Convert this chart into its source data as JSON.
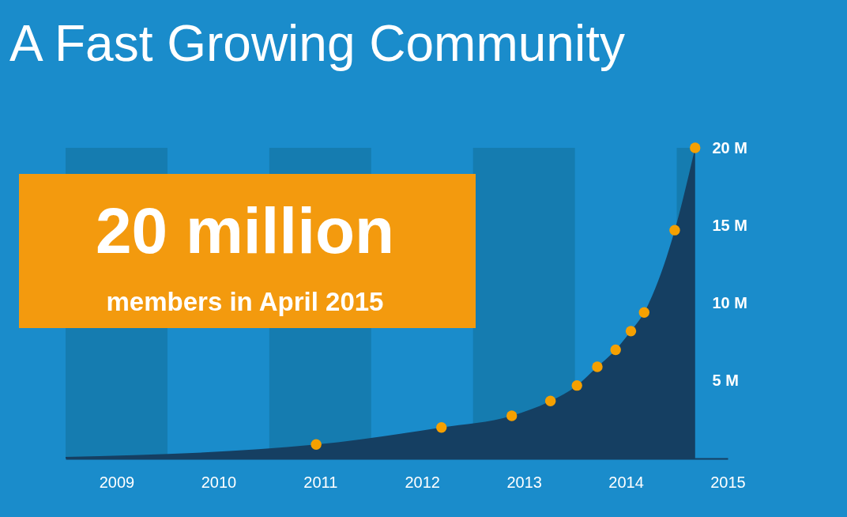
{
  "chart_data": {
    "type": "area",
    "title": "A Fast Growing Community",
    "annotations": [
      "20 million",
      "members in April 2015"
    ],
    "xlim": [
      2008.5,
      2015
    ],
    "xticks": [
      2009,
      2010,
      2011,
      2012,
      2013,
      2014,
      2015
    ],
    "ylim": [
      0,
      20
    ],
    "yticks": [
      {
        "value": 5,
        "label": "5 M"
      },
      {
        "value": 10,
        "label": "10 M"
      },
      {
        "value": 15,
        "label": "15 M"
      },
      {
        "value": 20,
        "label": "20 M"
      }
    ],
    "grid": false,
    "bands": [
      {
        "axis": "x",
        "from": 2008.5,
        "to": 2009.5,
        "color": "#157cb0"
      },
      {
        "axis": "x",
        "from": 2010.5,
        "to": 2011.5,
        "color": "#157cb0"
      },
      {
        "axis": "x",
        "from": 2012.5,
        "to": 2013.5,
        "color": "#157cb0"
      },
      {
        "axis": "x",
        "from": 2014.5,
        "to": 2014.68,
        "color": "#157cb0"
      }
    ],
    "series": [
      {
        "color": "#153f62",
        "x": [
          2008.5,
          2010.96,
          2012.19,
          2012.88,
          2013.26,
          2013.52,
          2013.72,
          2013.9,
          2014.05,
          2014.18,
          2014.26,
          2014.48,
          2014.68
        ],
        "values": [
          0.1,
          0.9,
          2.0,
          2.75,
          3.7,
          4.7,
          5.9,
          7.0,
          8.2,
          9.4,
          10.5,
          14.7,
          20
        ]
      },
      {
        "type": "scatter",
        "color": "#f5a000",
        "marker": "circle",
        "x": [
          2010.96,
          2012.19,
          2012.88,
          2013.26,
          2013.52,
          2013.72,
          2013.9,
          2014.05,
          2014.18,
          2014.48,
          2014.68
        ],
        "values": [
          0.9,
          2.0,
          2.75,
          3.7,
          4.7,
          5.9,
          7.0,
          8.2,
          9.4,
          14.7,
          20
        ]
      }
    ]
  }
}
